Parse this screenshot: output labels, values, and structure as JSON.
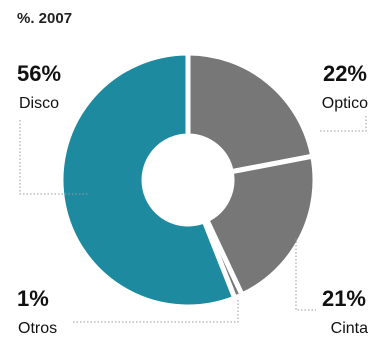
{
  "chart_data": {
    "type": "pie",
    "subtitle": "%. 2007",
    "slices": [
      {
        "label": "Optico",
        "value": 22,
        "display": "22%",
        "color": "#777777"
      },
      {
        "label": "Cinta",
        "value": 21,
        "display": "21%",
        "color": "#777777"
      },
      {
        "label": "Otros",
        "value": 1,
        "display": "1%",
        "color": "#777777"
      },
      {
        "label": "Disco",
        "value": 56,
        "display": "56%",
        "color": "#1e8aa0"
      }
    ]
  }
}
